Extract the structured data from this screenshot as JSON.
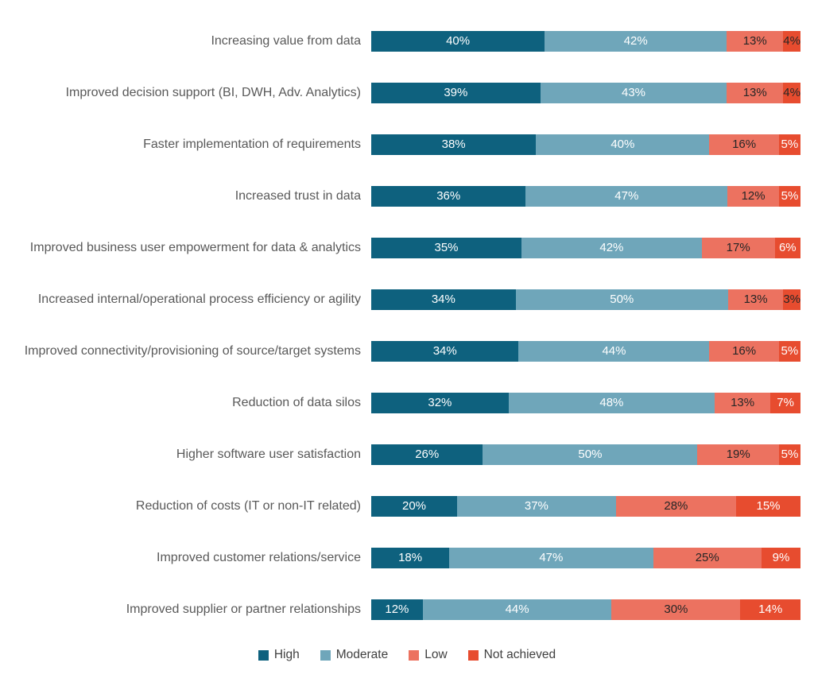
{
  "chart_data": {
    "type": "bar",
    "orientation": "horizontal",
    "stacked": true,
    "value_suffix": "%",
    "grid": false,
    "legend_position": "bottom",
    "categories": [
      "Increasing value from data",
      "Improved decision support (BI, DWH, Adv. Analytics)",
      "Faster implementation of requirements",
      "Increased trust in data",
      "Improved business user empowerment for data & analytics",
      "Increased internal/operational process efficiency or agility",
      "Improved connectivity/provisioning of source/target systems",
      "Reduction of data silos",
      "Higher software user satisfaction",
      "Reduction of costs (IT or non-IT related)",
      "Improved customer relations/service",
      "Improved supplier or partner relationships"
    ],
    "series": [
      {
        "name": "High",
        "color": "#0E617E",
        "label_color": "#FFFFFF",
        "values": [
          40,
          39,
          38,
          36,
          35,
          34,
          34,
          32,
          26,
          20,
          18,
          12
        ]
      },
      {
        "name": "Moderate",
        "color": "#6FA6BA",
        "label_color": "#FFFFFF",
        "values": [
          42,
          43,
          40,
          47,
          42,
          50,
          44,
          48,
          50,
          37,
          47,
          44
        ]
      },
      {
        "name": "Low",
        "color": "#EC7260",
        "label_color": "#262626",
        "values": [
          13,
          13,
          16,
          12,
          17,
          13,
          16,
          13,
          19,
          28,
          25,
          30
        ]
      },
      {
        "name": "Not achieved",
        "color": "#E74C2F",
        "label_color": "#FFFFFF",
        "small_label_color": "#262626",
        "values": [
          4,
          4,
          5,
          5,
          6,
          3,
          5,
          7,
          5,
          15,
          9,
          14
        ]
      }
    ],
    "legend": [
      "High",
      "Moderate",
      "Low",
      "Not achieved"
    ]
  }
}
